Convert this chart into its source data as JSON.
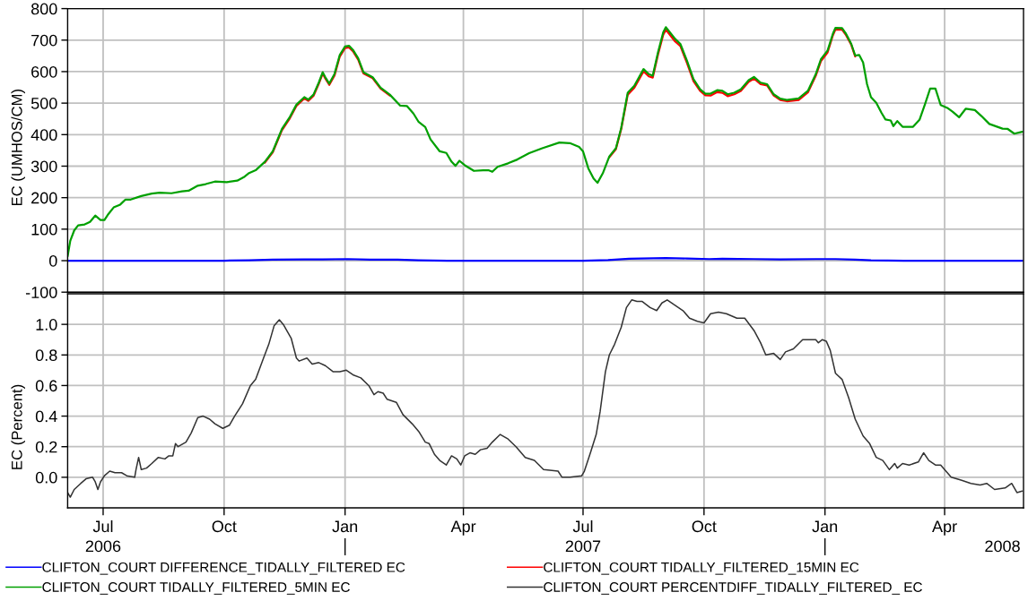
{
  "chart_data": [
    {
      "type": "line",
      "ylabel": "EC (UMHOS/CM)",
      "x": [
        "2006-06-04",
        "2006-06-06",
        "2006-06-09",
        "2006-06-12",
        "2006-06-17",
        "2006-06-21",
        "2006-06-25",
        "2006-06-29",
        "2006-07-02",
        "2006-07-05",
        "2006-07-09",
        "2006-07-14",
        "2006-07-18",
        "2006-07-22",
        "2006-07-30",
        "2006-08-07",
        "2006-08-13",
        "2006-08-22",
        "2006-08-30",
        "2006-09-04",
        "2006-09-11",
        "2006-09-17",
        "2006-09-24",
        "2006-10-03",
        "2006-10-11",
        "2006-10-16",
        "2006-10-20",
        "2006-10-25",
        "2006-11-01",
        "2006-11-07",
        "2006-11-14",
        "2006-11-20",
        "2006-11-25",
        "2006-12-01",
        "2006-12-04",
        "2006-12-08",
        "2006-12-12",
        "2006-12-15",
        "2006-12-17",
        "2006-12-20",
        "2006-12-24",
        "2006-12-28",
        "2007-01-01",
        "2007-01-04",
        "2007-01-07",
        "2007-01-11",
        "2007-01-15",
        "2007-01-22",
        "2007-01-28",
        "2007-02-04",
        "2007-02-12",
        "2007-02-17",
        "2007-02-22",
        "2007-02-26",
        "2007-03-03",
        "2007-03-07",
        "2007-03-14",
        "2007-03-19",
        "2007-03-23",
        "2007-03-26",
        "2007-03-29",
        "2007-04-02",
        "2007-04-09",
        "2007-04-16",
        "2007-04-20",
        "2007-04-23",
        "2007-04-27",
        "2007-05-05",
        "2007-05-12",
        "2007-05-21",
        "2007-05-31",
        "2007-06-13",
        "2007-06-21",
        "2007-06-28",
        "2007-07-01",
        "2007-07-05",
        "2007-07-09",
        "2007-07-12",
        "2007-07-16",
        "2007-07-21",
        "2007-07-26",
        "2007-07-30",
        "2007-08-04",
        "2007-08-09",
        "2007-08-16",
        "2007-08-20",
        "2007-08-23",
        "2007-08-27",
        "2007-08-31",
        "2007-09-02",
        "2007-09-05",
        "2007-09-09",
        "2007-09-13",
        "2007-09-18",
        "2007-09-23",
        "2007-09-28",
        "2007-10-02",
        "2007-10-06",
        "2007-10-11",
        "2007-10-15",
        "2007-10-19",
        "2007-10-24",
        "2007-10-29",
        "2007-11-04",
        "2007-11-08",
        "2007-11-13",
        "2007-11-18",
        "2007-11-23",
        "2007-11-28",
        "2007-12-03",
        "2007-12-12",
        "2007-12-19",
        "2007-12-25",
        "2007-12-29",
        "2008-01-03",
        "2008-01-07",
        "2008-01-09",
        "2008-01-14",
        "2008-01-17",
        "2008-01-21",
        "2008-01-24",
        "2008-01-27",
        "2008-01-30",
        "2008-02-02",
        "2008-02-05",
        "2008-02-09",
        "2008-02-13",
        "2008-02-16",
        "2008-02-20",
        "2008-02-22",
        "2008-02-25",
        "2008-02-29",
        "2008-03-08",
        "2008-03-13",
        "2008-03-17",
        "2008-03-21",
        "2008-03-25",
        "2008-03-29",
        "2008-04-03",
        "2008-04-07",
        "2008-04-12",
        "2008-04-17",
        "2008-04-24",
        "2008-04-29",
        "2008-05-05",
        "2008-05-15",
        "2008-05-19",
        "2008-05-24",
        "2008-05-30"
      ],
      "series": [
        {
          "name": "CLIFTON_COURT DIFFERENCE_TIDALLY_FILTERED EC",
          "color": "#0000ff",
          "x": [
            "2006-06-04",
            "2006-10-01",
            "2006-10-20",
            "2006-11-07",
            "2006-12-01",
            "2006-12-15",
            "2007-01-03",
            "2007-01-20",
            "2007-02-10",
            "2007-02-26",
            "2007-03-20",
            "2007-07-01",
            "2007-07-20",
            "2007-08-05",
            "2007-09-02",
            "2007-09-18",
            "2007-10-05",
            "2007-10-15",
            "2007-11-08",
            "2007-11-28",
            "2007-12-25",
            "2008-01-09",
            "2008-01-24",
            "2008-02-05",
            "2008-03-01",
            "2008-05-30"
          ],
          "values": [
            0,
            0,
            1,
            3,
            4,
            4,
            5,
            3,
            3,
            1,
            0,
            0,
            2,
            6,
            8,
            7,
            5,
            6,
            5,
            4,
            5,
            5,
            3,
            1,
            0,
            0
          ]
        },
        {
          "name": "CLIFTON_COURT TIDALLY_FILTERED_15MIN EC",
          "color": "#ff0000",
          "values": [
            null,
            null,
            null,
            null,
            null,
            null,
            null,
            null,
            null,
            null,
            null,
            null,
            null,
            null,
            null,
            null,
            null,
            null,
            null,
            null,
            null,
            null,
            null,
            null,
            null,
            null,
            null,
            null,
            311,
            344,
            414,
            452,
            491,
            515,
            507,
            523,
            561,
            594,
            578,
            558,
            588,
            648,
            675,
            677,
            665,
            638,
            594,
            579,
            546,
            524,
            null,
            null,
            null,
            null,
            null,
            null,
            null,
            null,
            null,
            null,
            null,
            null,
            null,
            null,
            null,
            null,
            null,
            null,
            null,
            null,
            null,
            null,
            null,
            null,
            null,
            null,
            null,
            null,
            null,
            328,
            354,
            417,
            527,
            549,
            601,
            585,
            581,
            654,
            717,
            733,
            717,
            696,
            681,
            628,
            570,
            539,
            525,
            524,
            535,
            533,
            522,
            528,
            539,
            568,
            578,
            560,
            556,
            524,
            510,
            506,
            510,
            534,
            587,
            634,
            661,
            715,
            734,
            733,
            716,
            685,
            648,
            null,
            null,
            null,
            null,
            null,
            null,
            null,
            null,
            null,
            null,
            null,
            null,
            null,
            null,
            null,
            null,
            null,
            null,
            null,
            null,
            null,
            null,
            null,
            null,
            null,
            null,
            null,
            null
          ]
        },
        {
          "name": "CLIFTON_COURT TIDALLY_FILTERED_5MIN EC",
          "color": "#00a000",
          "values": [
            14,
            63,
            96,
            112,
            115,
            123,
            143,
            129,
            129,
            148,
            169,
            178,
            194,
            194,
            205,
            213,
            216,
            214,
            220,
            222,
            238,
            243,
            251,
            249,
            254,
            265,
            278,
            287,
            314,
            347,
            418,
            456,
            495,
            519,
            511,
            527,
            565,
            598,
            582,
            562,
            593,
            653,
            680,
            682,
            669,
            642,
            598,
            582,
            549,
            527,
            492,
            491,
            467,
            440,
            424,
            385,
            347,
            342,
            314,
            301,
            317,
            303,
            285,
            287,
            287,
            282,
            298,
            309,
            321,
            341,
            357,
            375,
            373,
            361,
            347,
            293,
            261,
            247,
            277,
            331,
            357,
            421,
            533,
            555,
            608,
            592,
            587,
            661,
            725,
            741,
            725,
            704,
            688,
            635,
            576,
            544,
            530,
            530,
            541,
            539,
            528,
            533,
            544,
            573,
            583,
            565,
            560,
            528,
            514,
            510,
            515,
            539,
            592,
            640,
            667,
            720,
            739,
            738,
            720,
            688,
            651,
            653,
            629,
            560,
            519,
            501,
            469,
            448,
            445,
            427,
            443,
            425,
            425,
            448,
            496,
            546,
            546,
            494,
            485,
            473,
            455,
            482,
            478,
            459,
            434,
            419,
            418,
            403,
            409
          ]
        }
      ],
      "xlim": [
        "2006-06-04",
        "2008-05-31"
      ],
      "xticks": [
        "2006-07-01",
        "2006-10-01",
        "2007-01-01",
        "2007-04-01",
        "2007-07-01",
        "2007-10-01",
        "2008-01-01",
        "2008-04-01"
      ],
      "ylim": [
        -100,
        800
      ],
      "yticks": [
        -100,
        0,
        100,
        200,
        300,
        400,
        500,
        600,
        700,
        800
      ],
      "grid": true,
      "legend": "bottom",
      "tick_labels": "y"
    },
    {
      "type": "line",
      "ylabel": "EC (Percent)",
      "x": [
        "2006-06-04",
        "2006-06-06",
        "2006-06-09",
        "2006-06-14",
        "2006-06-18",
        "2006-06-23",
        "2006-06-25",
        "2006-06-27",
        "2006-06-29",
        "2006-07-02",
        "2006-07-06",
        "2006-07-10",
        "2006-07-15",
        "2006-07-19",
        "2006-07-25",
        "2006-07-26",
        "2006-07-28",
        "2006-07-30",
        "2006-08-03",
        "2006-08-07",
        "2006-08-12",
        "2006-08-17",
        "2006-08-20",
        "2006-08-23",
        "2006-08-25",
        "2006-08-27",
        "2006-09-02",
        "2006-09-06",
        "2006-09-11",
        "2006-09-15",
        "2006-09-20",
        "2006-09-24",
        "2006-09-30",
        "2006-10-05",
        "2006-10-09",
        "2006-10-15",
        "2006-10-21",
        "2006-10-25",
        "2006-10-31",
        "2006-11-04",
        "2006-11-08",
        "2006-11-12",
        "2006-11-15",
        "2006-11-21",
        "2006-11-25",
        "2006-11-27",
        "2006-12-03",
        "2006-12-07",
        "2006-12-12",
        "2006-12-17",
        "2006-12-23",
        "2006-12-28",
        "2007-01-02",
        "2007-01-07",
        "2007-01-13",
        "2007-01-19",
        "2007-01-23",
        "2007-01-26",
        "2007-01-30",
        "2007-02-02",
        "2007-02-09",
        "2007-02-14",
        "2007-02-21",
        "2007-02-26",
        "2007-03-03",
        "2007-03-06",
        "2007-03-10",
        "2007-03-14",
        "2007-03-19",
        "2007-03-23",
        "2007-03-27",
        "2007-03-30",
        "2007-04-02",
        "2007-04-06",
        "2007-04-10",
        "2007-04-14",
        "2007-04-19",
        "2007-04-23",
        "2007-04-29",
        "2007-05-05",
        "2007-05-11",
        "2007-05-18",
        "2007-05-25",
        "2007-06-01",
        "2007-06-12",
        "2007-06-15",
        "2007-06-21",
        "2007-06-30",
        "2007-07-02",
        "2007-07-07",
        "2007-07-11",
        "2007-07-14",
        "2007-07-18",
        "2007-07-21",
        "2007-07-25",
        "2007-07-30",
        "2007-08-03",
        "2007-08-07",
        "2007-08-11",
        "2007-08-15",
        "2007-08-21",
        "2007-08-26",
        "2007-08-30",
        "2007-09-03",
        "2007-09-08",
        "2007-09-15",
        "2007-09-20",
        "2007-09-26",
        "2007-10-01",
        "2007-10-06",
        "2007-10-12",
        "2007-10-18",
        "2007-10-26",
        "2007-11-01",
        "2007-11-08",
        "2007-11-13",
        "2007-11-17",
        "2007-11-23",
        "2007-11-28",
        "2007-12-02",
        "2007-12-08",
        "2007-12-15",
        "2007-12-20",
        "2007-12-25",
        "2007-12-27",
        "2007-12-30",
        "2008-01-02",
        "2008-01-05",
        "2008-01-09",
        "2008-01-14",
        "2008-01-19",
        "2008-01-24",
        "2008-01-30",
        "2008-02-04",
        "2008-02-09",
        "2008-02-14",
        "2008-02-19",
        "2008-02-23",
        "2008-02-25",
        "2008-02-29",
        "2008-03-05",
        "2008-03-12",
        "2008-03-16",
        "2008-03-20",
        "2008-03-25",
        "2008-03-29",
        "2008-04-06",
        "2008-04-14",
        "2008-04-21",
        "2008-04-28",
        "2008-05-03",
        "2008-05-09",
        "2008-05-17",
        "2008-05-22",
        "2008-05-26",
        "2008-05-30"
      ],
      "series": [
        {
          "name": "CLIFTON_COURT PERCENTDIFF_TIDALLY_FILTERED_ EC",
          "color": "#333333",
          "values": [
            -0.1,
            -0.13,
            -0.08,
            -0.04,
            -0.01,
            0.0,
            -0.03,
            -0.08,
            -0.03,
            0.01,
            0.04,
            0.03,
            0.03,
            0.01,
            0.0,
            0.05,
            0.13,
            0.05,
            0.06,
            0.09,
            0.13,
            0.12,
            0.14,
            0.14,
            0.22,
            0.2,
            0.23,
            0.29,
            0.39,
            0.4,
            0.38,
            0.35,
            0.32,
            0.34,
            0.4,
            0.48,
            0.6,
            0.64,
            0.78,
            0.87,
            0.99,
            1.03,
            1.0,
            0.91,
            0.78,
            0.76,
            0.78,
            0.74,
            0.75,
            0.73,
            0.69,
            0.69,
            0.7,
            0.67,
            0.65,
            0.6,
            0.54,
            0.56,
            0.55,
            0.51,
            0.49,
            0.41,
            0.35,
            0.3,
            0.23,
            0.22,
            0.15,
            0.11,
            0.08,
            0.14,
            0.12,
            0.08,
            0.14,
            0.16,
            0.15,
            0.18,
            0.19,
            0.23,
            0.28,
            0.25,
            0.2,
            0.13,
            0.11,
            0.05,
            0.04,
            0.0,
            0.0,
            0.01,
            0.04,
            0.17,
            0.28,
            0.43,
            0.69,
            0.8,
            0.87,
            0.98,
            1.11,
            1.16,
            1.15,
            1.15,
            1.11,
            1.09,
            1.14,
            1.16,
            1.13,
            1.09,
            1.04,
            1.02,
            1.01,
            1.07,
            1.08,
            1.07,
            1.04,
            1.04,
            0.96,
            0.88,
            0.8,
            0.81,
            0.77,
            0.82,
            0.84,
            0.9,
            0.9,
            0.9,
            0.88,
            0.9,
            0.89,
            0.83,
            0.68,
            0.64,
            0.52,
            0.38,
            0.27,
            0.22,
            0.13,
            0.11,
            0.05,
            0.09,
            0.06,
            0.09,
            0.08,
            0.1,
            0.16,
            0.11,
            0.08,
            0.08,
            0.0,
            -0.02,
            -0.04,
            -0.05,
            -0.04,
            -0.08,
            -0.07,
            -0.04,
            -0.1,
            -0.09
          ]
        }
      ],
      "xlim": [
        "2006-06-04",
        "2008-05-31"
      ],
      "xticks": [
        {
          "value": "2006-07-01",
          "label": "Jul"
        },
        {
          "value": "2006-10-01",
          "label": "Oct"
        },
        {
          "value": "2007-01-01",
          "label": "Jan"
        },
        {
          "value": "2007-04-01",
          "label": "Apr"
        },
        {
          "value": "2007-07-01",
          "label": "Jul"
        },
        {
          "value": "2007-10-01",
          "label": "Oct"
        },
        {
          "value": "2008-01-01",
          "label": "Jan"
        },
        {
          "value": "2008-04-01",
          "label": "Apr"
        }
      ],
      "x2lim": [
        "2006-06-04",
        "2008-05-31"
      ],
      "x2ticks": [
        {
          "value": "2006-07-01",
          "label": "2006"
        },
        {
          "value": "2007-01-01",
          "label": null
        },
        {
          "value": "2007-07-01",
          "label": "2007"
        },
        {
          "value": "2008-01-01",
          "label": null
        },
        {
          "value": "2008-05-15",
          "label": "2008"
        }
      ],
      "ylim": [
        -0.2,
        1.2
      ],
      "yticks": [
        {
          "value": 0,
          "label": "0.0"
        },
        0.2,
        0.4,
        0.6,
        0.8,
        {
          "value": 1,
          "label": "1.0"
        }
      ],
      "grid": true,
      "legend": "bottom"
    }
  ]
}
